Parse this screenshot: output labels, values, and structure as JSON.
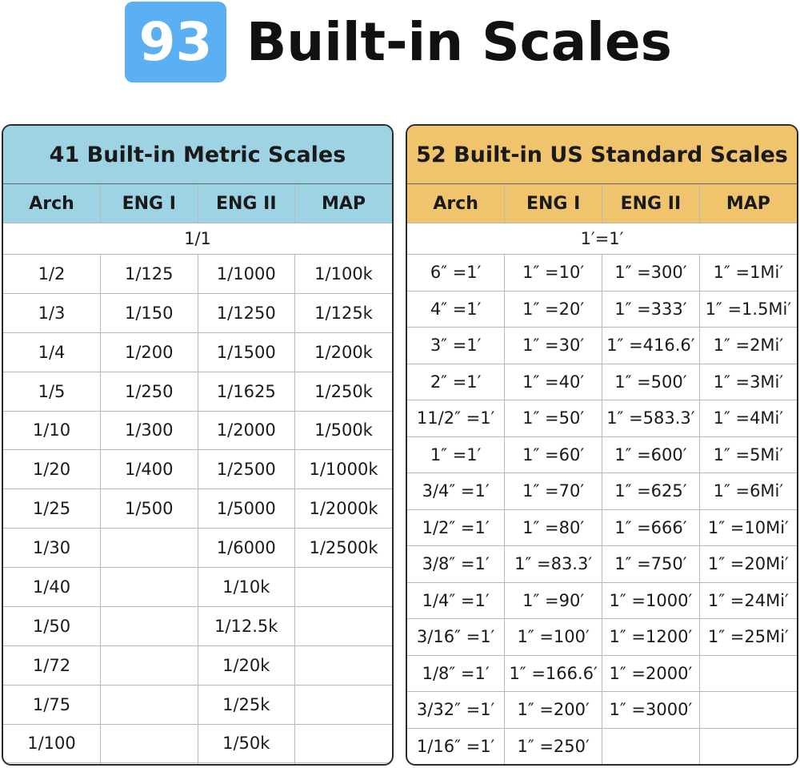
{
  "header": {
    "badge": "93",
    "title": "Built-in Scales"
  },
  "tables": [
    {
      "title": "41 Built-in Metric Scales",
      "columns": [
        "Arch",
        "ENG I",
        "ENG II",
        "MAP"
      ],
      "span_row": "1/1",
      "rows": [
        [
          "1/2",
          "1/125",
          "1/1000",
          "1/100k"
        ],
        [
          "1/3",
          "1/150",
          "1/1250",
          "1/125k"
        ],
        [
          "1/4",
          "1/200",
          "1/1500",
          "1/200k"
        ],
        [
          "1/5",
          "1/250",
          "1/1625",
          "1/250k"
        ],
        [
          "1/10",
          "1/300",
          "1/2000",
          "1/500k"
        ],
        [
          "1/20",
          "1/400",
          "1/2500",
          "1/1000k"
        ],
        [
          "1/25",
          "1/500",
          "1/5000",
          "1/2000k"
        ],
        [
          "1/30",
          null,
          "1/6000",
          "1/2500k"
        ],
        [
          "1/40",
          null,
          "1/10k",
          null
        ],
        [
          "1/50",
          null,
          "1/12.5k",
          null
        ],
        [
          "1/72",
          null,
          "1/20k",
          null
        ],
        [
          "1/75",
          null,
          "1/25k",
          null
        ],
        [
          "1/100",
          null,
          "1/50k",
          null
        ]
      ]
    },
    {
      "title": "52 Built-in US Standard Scales",
      "columns": [
        "Arch",
        "ENG I",
        "ENG II",
        "MAP"
      ],
      "span_row": "1′=1′",
      "rows": [
        [
          "6″ =1′",
          "1″ =10′",
          "1″ =300′",
          "1″ =1Mi′"
        ],
        [
          "4″ =1′",
          "1″ =20′",
          "1″ =333′",
          "1″ =1.5Mi′"
        ],
        [
          "3″ =1′",
          "1″ =30′",
          "1″ =416.6′",
          "1″ =2Mi′"
        ],
        [
          "2″ =1′",
          "1″ =40′",
          "1″ =500′",
          "1″ =3Mi′"
        ],
        [
          "11/2″ =1′",
          "1″ =50′",
          "1″ =583.3′",
          "1″ =4Mi′"
        ],
        [
          "1″ =1′",
          "1″ =60′",
          "1″ =600′",
          "1″ =5Mi′"
        ],
        [
          "3/4″ =1′",
          "1″ =70′",
          "1″ =625′",
          "1″ =6Mi′"
        ],
        [
          "1/2″ =1′",
          "1″ =80′",
          "1″ =666′",
          "1″ =10Mi′"
        ],
        [
          "3/8″ =1′",
          "1″ =83.3′",
          "1″ =750′",
          "1″ =20Mi′"
        ],
        [
          "1/4″ =1′",
          "1″ =90′",
          "1″ =1000′",
          "1″ =24Mi′"
        ],
        [
          "3/16″ =1′",
          "1″ =100′",
          "1″ =1200′",
          "1″ =25Mi′"
        ],
        [
          "1/8″ =1′",
          "1″ =166.6′",
          "1″ =2000′",
          null
        ],
        [
          "3/32″ =1′",
          "1″ =200′",
          "1″ =3000′",
          null
        ],
        [
          "1/16″ =1′",
          "1″ =250′",
          null,
          null
        ]
      ]
    }
  ]
}
